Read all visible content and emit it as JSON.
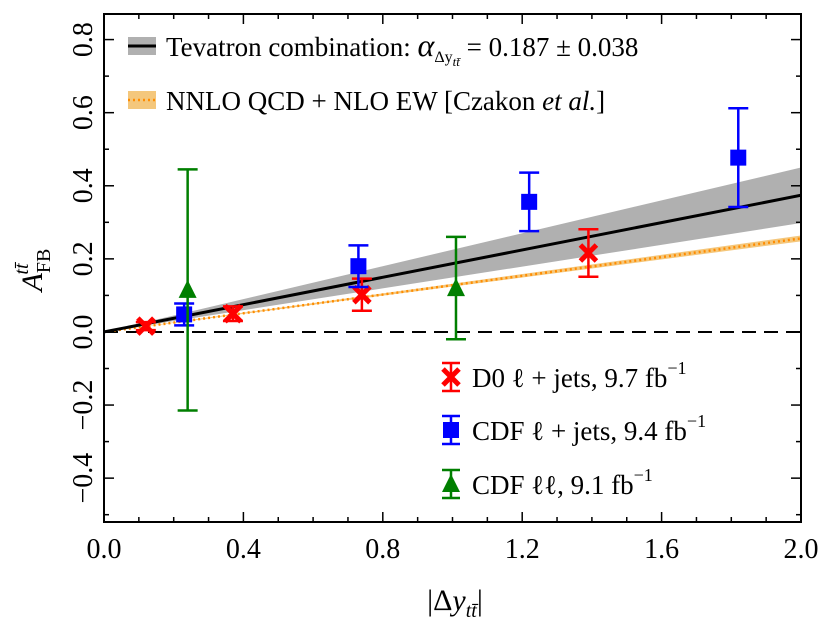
{
  "chart_data": {
    "type": "scatter",
    "xlabel": "|Δy_tt̄|",
    "ylabel": "A_FB^tt̄",
    "xlim": [
      0.0,
      2.0
    ],
    "ylim": [
      -0.52,
      0.87
    ],
    "xticks": [
      "0.0",
      "0.4",
      "0.8",
      "1.2",
      "1.6",
      "2.0"
    ],
    "xtick_values": [
      0.0,
      0.4,
      0.8,
      1.2,
      1.6,
      2.0
    ],
    "yticks": [
      "−0.4",
      "−0.2",
      "0.0",
      "0.2",
      "0.4",
      "0.6",
      "0.8"
    ],
    "ytick_values": [
      -0.4,
      -0.2,
      0.0,
      0.2,
      0.4,
      0.6,
      0.8
    ],
    "tevatron_combination": {
      "label_prefix": "Tevatron combination: ",
      "label_alpha": "α",
      "label_sub": "Δy",
      "label_subsub": "tt̄",
      "label_value": " = 0.187 ± 0.038",
      "slope": 0.187,
      "uncertainty": 0.038,
      "color": "#000000",
      "band_color": "#b0b0b0"
    },
    "nnlo": {
      "label_prefix": "NNLO QCD + NLO EW [Czakon ",
      "label_italic": "et al.",
      "label_suffix": "]",
      "slope": 0.128,
      "uncertainty": 0.004,
      "color": "#ff8c00",
      "band_color": "#f4c77c"
    },
    "zero_line": {
      "y": 0.0,
      "style": "dashed"
    },
    "series": [
      {
        "name": "D0 ℓ + jets, 9.7 fb−1",
        "label_main": "D0 ℓ + jets, 9.7 fb",
        "label_sup": "−1",
        "marker": "x",
        "color": "#ff0000",
        "points": [
          {
            "x": 0.12,
            "y": 0.016,
            "err": 0.011
          },
          {
            "x": 0.37,
            "y": 0.05,
            "err": 0.02
          },
          {
            "x": 0.74,
            "y": 0.102,
            "err": 0.044
          },
          {
            "x": 1.39,
            "y": 0.216,
            "err": 0.065
          }
        ]
      },
      {
        "name": "CDF ℓ + jets, 9.4 fb−1",
        "label_main": "CDF ℓ + jets, 9.4 fb",
        "label_sup": "−1",
        "marker": "square",
        "color": "#0000ff",
        "points": [
          {
            "x": 0.23,
            "y": 0.048,
            "err": 0.03
          },
          {
            "x": 0.73,
            "y": 0.18,
            "err": 0.057
          },
          {
            "x": 1.22,
            "y": 0.356,
            "err": 0.08
          },
          {
            "x": 1.82,
            "y": 0.477,
            "err": 0.135
          }
        ]
      },
      {
        "name": "CDF ℓℓ, 9.1 fb−1",
        "label_main": "CDF ℓℓ, 9.1 fb",
        "label_sup": "−1",
        "marker": "triangle",
        "color": "#007f00",
        "points": [
          {
            "x": 0.24,
            "y": 0.115,
            "err": 0.33
          },
          {
            "x": 1.01,
            "y": 0.12,
            "err": 0.14
          }
        ]
      }
    ]
  }
}
